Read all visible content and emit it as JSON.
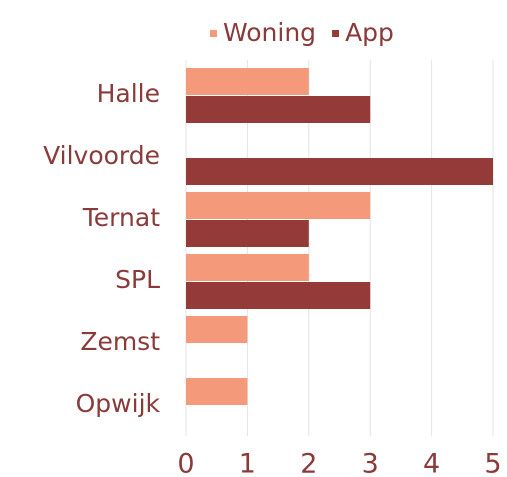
{
  "chart_data": {
    "type": "bar",
    "orientation": "horizontal",
    "categories": [
      "Halle",
      "Vilvoorde",
      "Ternat",
      "SPL",
      "Zemst",
      "Opwijk"
    ],
    "series": [
      {
        "name": "Woning",
        "color": "#f4997a",
        "values": [
          2,
          0,
          3,
          2,
          1,
          1
        ]
      },
      {
        "name": "App",
        "color": "#943b3a",
        "values": [
          3,
          5,
          2,
          3,
          0,
          0
        ]
      }
    ],
    "xlim": [
      0,
      5
    ],
    "xticks": [
      0,
      1,
      2,
      3,
      4,
      5
    ],
    "grid": true,
    "legend": "top"
  }
}
